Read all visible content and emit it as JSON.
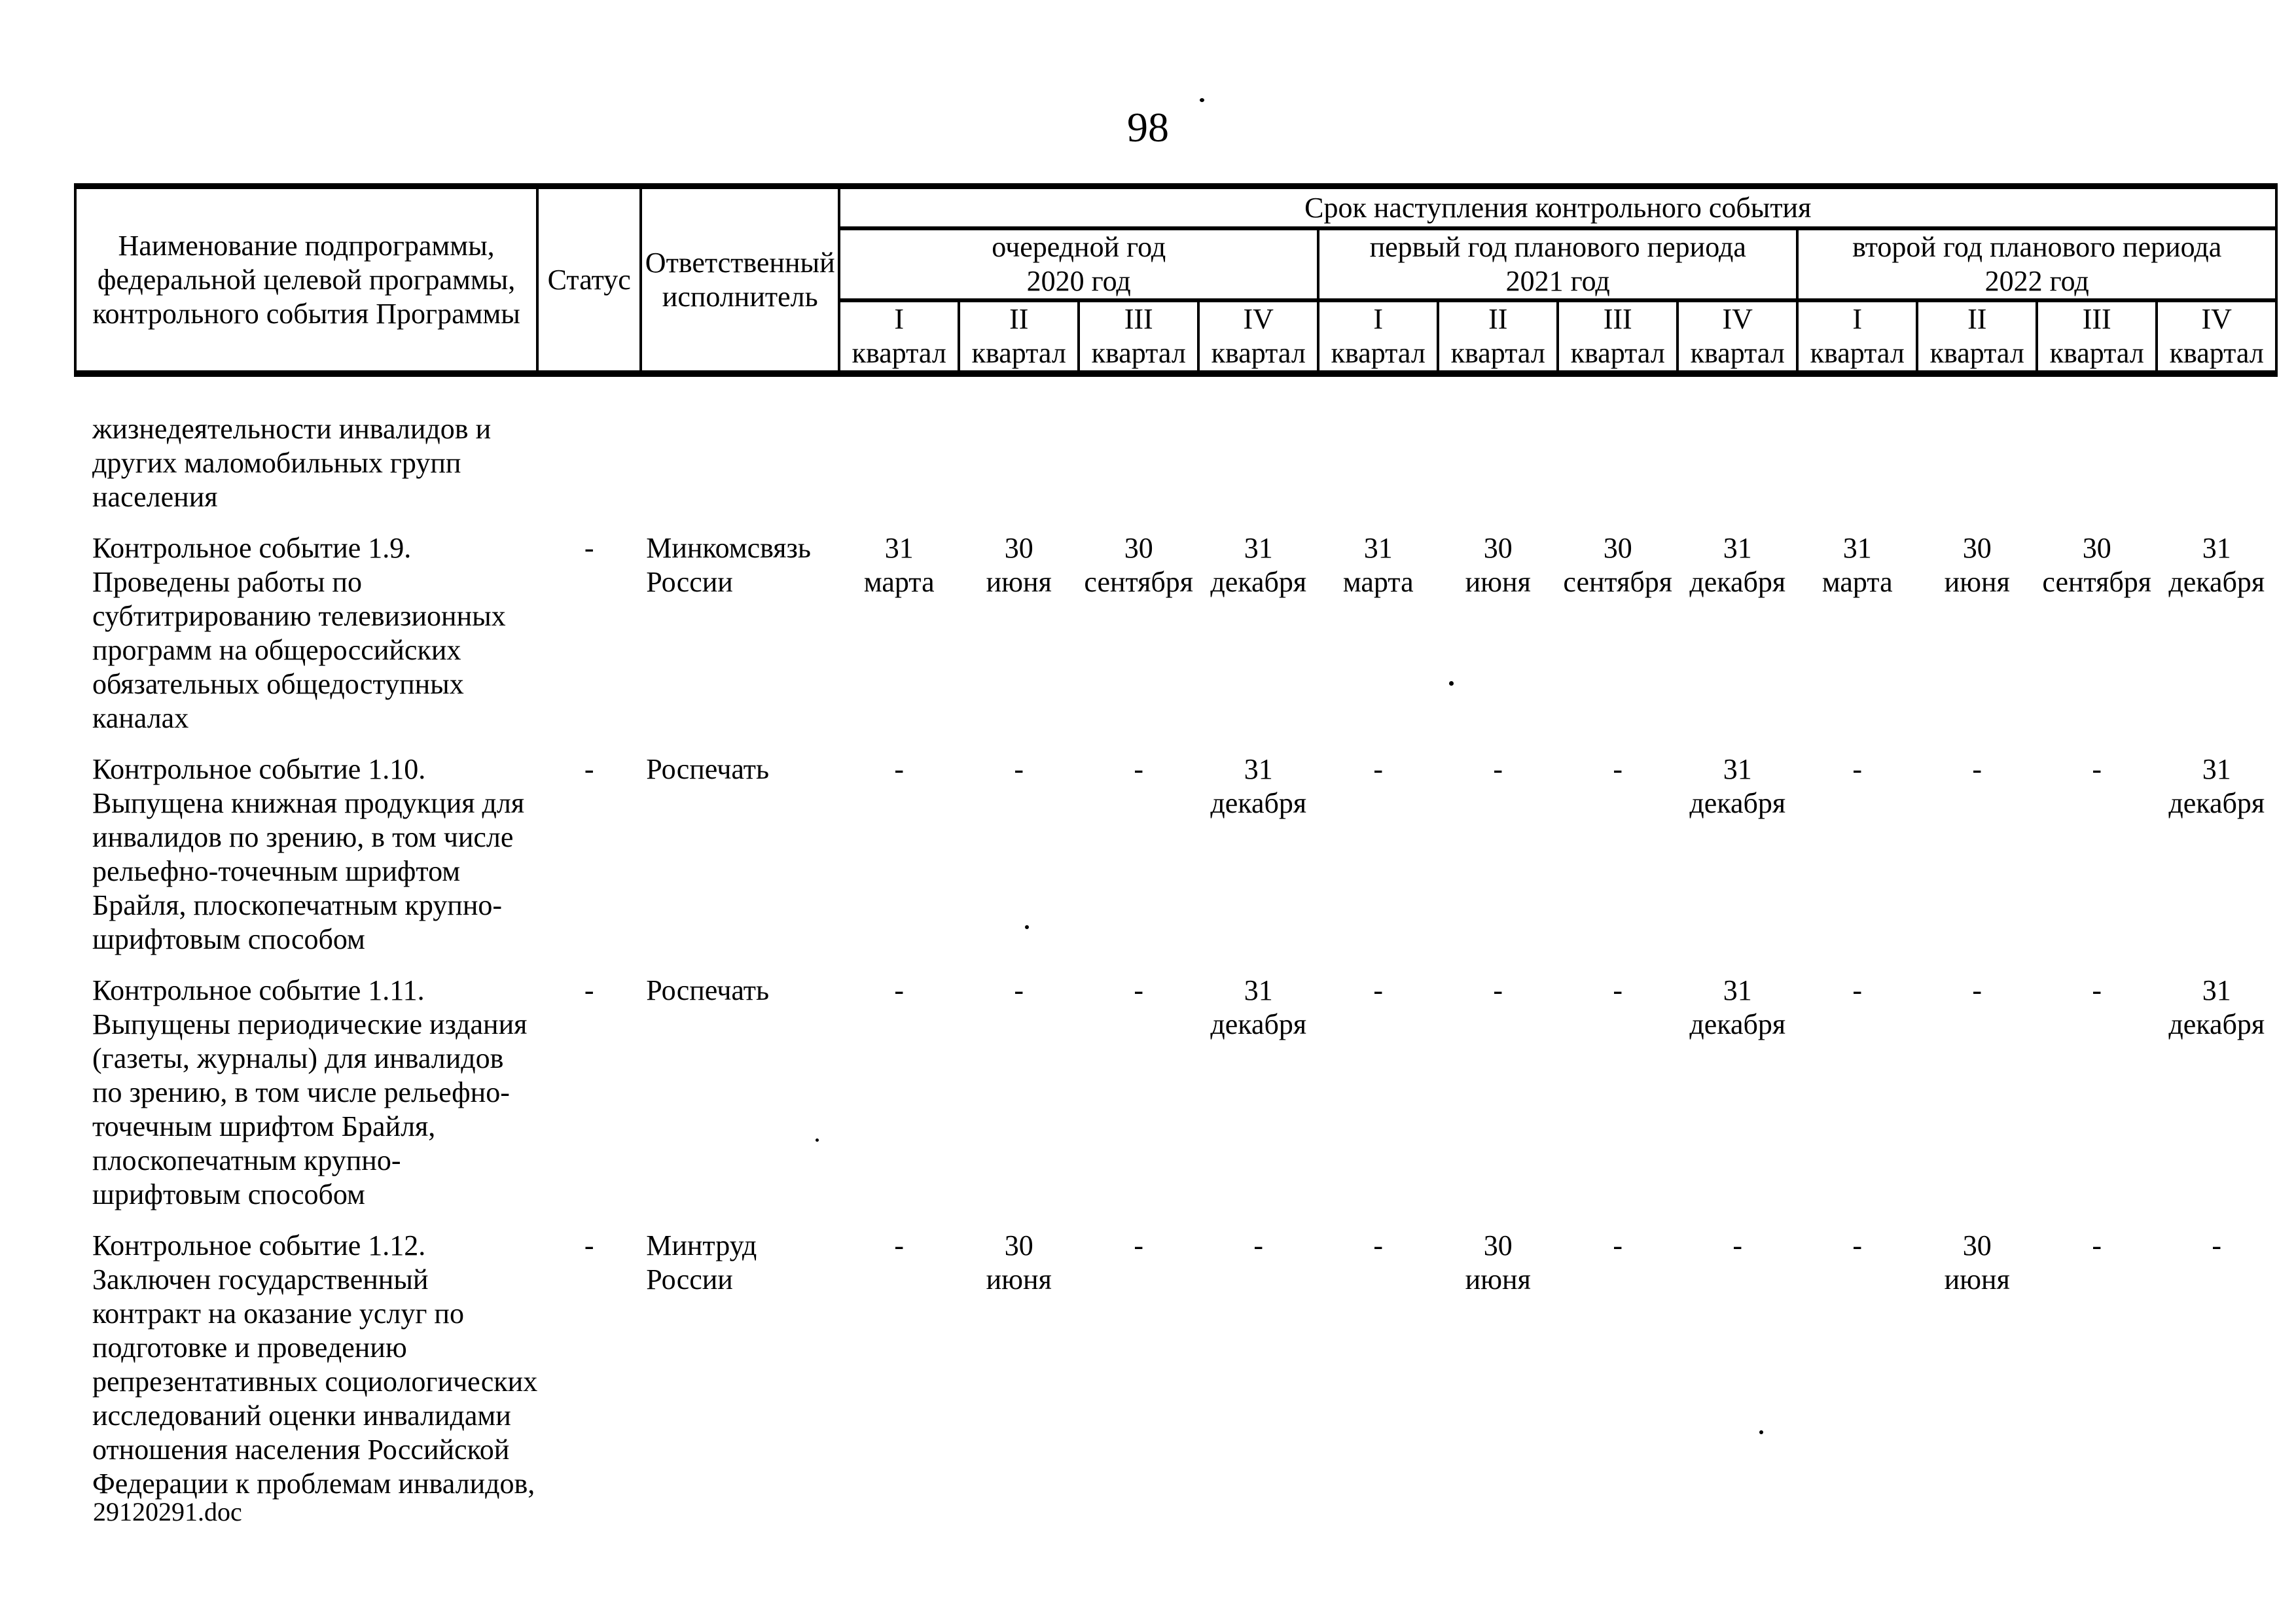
{
  "page": {
    "number": "98",
    "footer": "29120291.doc"
  },
  "table": {
    "header": {
      "name_lines": [
        "Наименование подпрограммы,",
        "федеральной целевой программы,",
        "контрольного события Программы"
      ],
      "status_label": "Статус",
      "executor_lines": [
        "Ответственный",
        "исполнитель"
      ],
      "deadline_title": "Срок наступления контрольного события",
      "quarter_label": "квартал",
      "years": [
        {
          "period": "очередной год",
          "year": "2020 год",
          "quarters": [
            "I",
            "II",
            "III",
            "IV"
          ]
        },
        {
          "period": "первый год планового периода",
          "year": "2021 год",
          "quarters": [
            "I",
            "II",
            "III",
            "IV"
          ]
        },
        {
          "period": "второй год планового периода",
          "year": "2022 год",
          "quarters": [
            "I",
            "II",
            "III",
            "IV"
          ]
        }
      ]
    },
    "rows": [
      {
        "name_lines": [
          "жизнедеятельности инвалидов и",
          "других маломобильных групп",
          "населения"
        ],
        "status": "",
        "executor_lines": [],
        "dates": [
          null,
          null,
          null,
          null,
          null,
          null,
          null,
          null,
          null,
          null,
          null,
          null
        ]
      },
      {
        "name_lines": [
          "Контрольное событие 1.9.",
          "Проведены работы по",
          "субтитрированию телевизионных",
          "программ на общероссийских",
          "обязательных общедоступных",
          "каналах"
        ],
        "status": "-",
        "executor_lines": [
          "Минкомсвязь",
          "России"
        ],
        "dates": [
          {
            "day": "31",
            "month": "марта"
          },
          {
            "day": "30",
            "month": "июня"
          },
          {
            "day": "30",
            "month": "сентября"
          },
          {
            "day": "31",
            "month": "декабря"
          },
          {
            "day": "31",
            "month": "марта"
          },
          {
            "day": "30",
            "month": "июня"
          },
          {
            "day": "30",
            "month": "сентября"
          },
          {
            "day": "31",
            "month": "декабря"
          },
          {
            "day": "31",
            "month": "марта"
          },
          {
            "day": "30",
            "month": "июня"
          },
          {
            "day": "30",
            "month": "сентября"
          },
          {
            "day": "31",
            "month": "декабря"
          }
        ]
      },
      {
        "name_lines": [
          "Контрольное событие 1.10.",
          "Выпущена книжная продукция для",
          "инвалидов по зрению, в том числе",
          "рельефно-точечным шрифтом",
          "Брайля, плоскопечатным крупно-",
          "шрифтовым способом"
        ],
        "status": "-",
        "executor_lines": [
          "Роспечать"
        ],
        "dates": [
          {
            "day": "-",
            "month": ""
          },
          {
            "day": "-",
            "month": ""
          },
          {
            "day": "-",
            "month": ""
          },
          {
            "day": "31",
            "month": "декабря"
          },
          {
            "day": "-",
            "month": ""
          },
          {
            "day": "-",
            "month": ""
          },
          {
            "day": "-",
            "month": ""
          },
          {
            "day": "31",
            "month": "декабря"
          },
          {
            "day": "-",
            "month": ""
          },
          {
            "day": "-",
            "month": ""
          },
          {
            "day": "-",
            "month": ""
          },
          {
            "day": "31",
            "month": "декабря"
          }
        ]
      },
      {
        "name_lines": [
          "Контрольное событие 1.11.",
          "Выпущены периодические издания",
          "(газеты, журналы) для инвалидов",
          "по зрению, в том числе рельефно-",
          "точечным шрифтом Брайля,",
          "плоскопечатным крупно-",
          "шрифтовым способом"
        ],
        "status": "-",
        "executor_lines": [
          "Роспечать"
        ],
        "dates": [
          {
            "day": "-",
            "month": ""
          },
          {
            "day": "-",
            "month": ""
          },
          {
            "day": "-",
            "month": ""
          },
          {
            "day": "31",
            "month": "декабря"
          },
          {
            "day": "-",
            "month": ""
          },
          {
            "day": "-",
            "month": ""
          },
          {
            "day": "-",
            "month": ""
          },
          {
            "day": "31",
            "month": "декабря"
          },
          {
            "day": "-",
            "month": ""
          },
          {
            "day": "-",
            "month": ""
          },
          {
            "day": "-",
            "month": ""
          },
          {
            "day": "31",
            "month": "декабря"
          }
        ]
      },
      {
        "name_lines": [
          "Контрольное событие 1.12.",
          "Заключен государственный",
          "контракт на оказание услуг по",
          "подготовке и проведению",
          "репрезентативных социологических",
          "исследований оценки инвалидами",
          "отношения населения Российской",
          "Федерации к проблемам инвалидов,"
        ],
        "status": "-",
        "executor_lines": [
          "Минтруд",
          "России"
        ],
        "dates": [
          {
            "day": "-",
            "month": ""
          },
          {
            "day": "30",
            "month": "июня"
          },
          {
            "day": "-",
            "month": ""
          },
          {
            "day": "-",
            "month": ""
          },
          {
            "day": "-",
            "month": ""
          },
          {
            "day": "30",
            "month": "июня"
          },
          {
            "day": "-",
            "month": ""
          },
          {
            "day": "-",
            "month": ""
          },
          {
            "day": "-",
            "month": ""
          },
          {
            "day": "30",
            "month": "июня"
          },
          {
            "day": "-",
            "month": ""
          },
          {
            "day": "-",
            "month": ""
          }
        ]
      }
    ]
  }
}
